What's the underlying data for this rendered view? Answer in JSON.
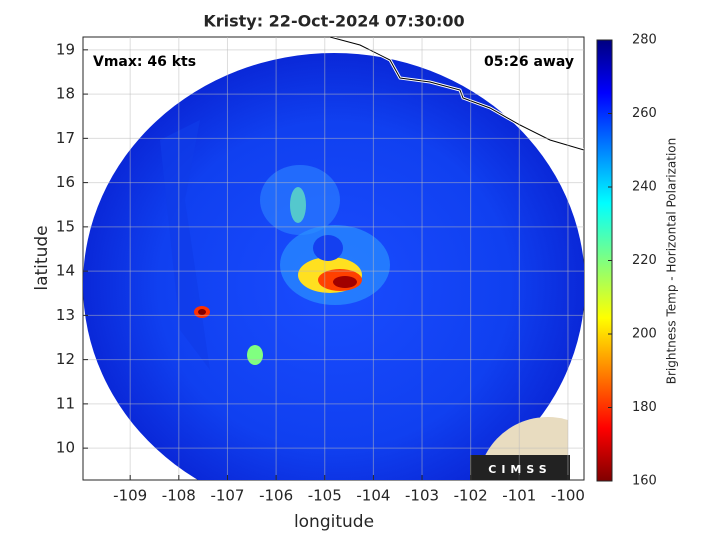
{
  "chart_data": {
    "type": "image",
    "title": "Kristy: 22-Oct-2024 07:30:00",
    "xlabel": "longitude",
    "ylabel": "latitude",
    "annotations": [
      "Vmax: 46 kts",
      "05:26 away"
    ],
    "logo": "CIMSS",
    "xlim": [
      -109.97,
      -99.67
    ],
    "ylim": [
      9.28,
      19.29
    ],
    "xticks": [
      -109,
      -108,
      -107,
      -106,
      -105,
      -104,
      -103,
      -102,
      -101,
      -100
    ],
    "yticks": [
      10,
      11,
      12,
      13,
      14,
      15,
      16,
      17,
      18,
      19
    ],
    "grid": true,
    "colorbar": {
      "label": "Brightness Temp - Horizontal Polarization",
      "clim": [
        160,
        280
      ],
      "ticks": [
        160,
        180,
        200,
        220,
        240,
        260,
        280
      ]
    }
  }
}
